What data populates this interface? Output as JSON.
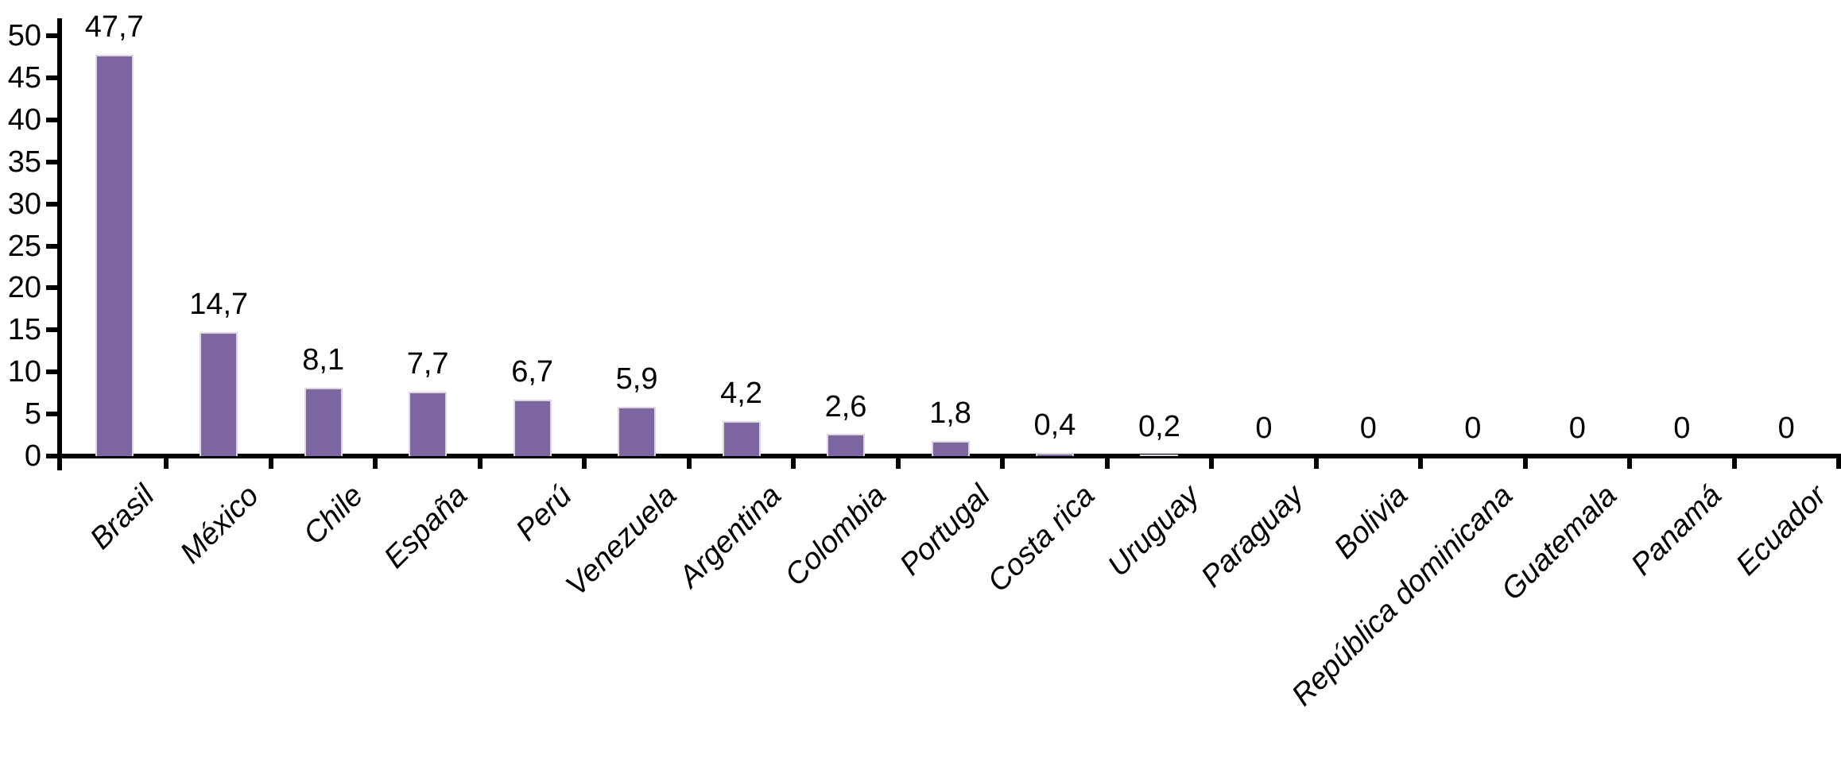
{
  "chart_data": {
    "type": "bar",
    "title": "",
    "xlabel": "",
    "ylabel": "",
    "categories": [
      "Brasil",
      "México",
      "Chile",
      "España",
      "Perú",
      "Venezuela",
      "Argentina",
      "Colombia",
      "Portugal",
      "Costa rica",
      "Uruguay",
      "Paraguay",
      "Bolivia",
      "República dominicana",
      "Guatemala",
      "Panamá",
      "Ecuador"
    ],
    "values": [
      47.7,
      14.7,
      8.1,
      7.7,
      6.7,
      5.9,
      4.2,
      2.6,
      1.8,
      0.4,
      0.2,
      0,
      0,
      0,
      0,
      0,
      0
    ],
    "value_labels": [
      "47,7",
      "14,7",
      "8,1",
      "7,7",
      "6,7",
      "5,9",
      "4,2",
      "2,6",
      "1,8",
      "0,4",
      "0,2",
      "0",
      "0",
      "0",
      "0",
      "0",
      "0"
    ],
    "ylim": [
      0,
      50
    ],
    "ytick_step": 5,
    "ytick_labels": [
      "0",
      "5",
      "10",
      "15",
      "20",
      "25",
      "30",
      "35",
      "40",
      "45",
      "50"
    ],
    "grid": false,
    "legend": "none",
    "decimal_separator": ",",
    "x_labels_rotation_deg": 45,
    "x_labels_style": "italic",
    "bar_color": "#7e66a0",
    "bar_edge_color": "#ded6e8",
    "axis_color": "#000000",
    "text_color": "#000000",
    "background_color": "#ffffff"
  }
}
